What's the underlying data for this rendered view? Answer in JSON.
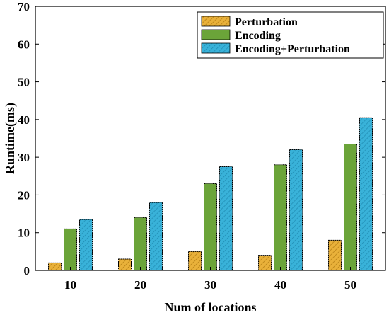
{
  "chart_data": {
    "type": "bar",
    "xlabel": "Num of locations",
    "ylabel": "Runtime(ms)",
    "categories": [
      "10",
      "20",
      "30",
      "40",
      "50"
    ],
    "ylim": [
      0,
      70
    ],
    "yticks": [
      0,
      10,
      20,
      30,
      40,
      50,
      60,
      70
    ],
    "grid": false,
    "legend_position": "top-right",
    "series": [
      {
        "name": "Perturbation",
        "values": [
          2,
          3,
          5,
          4,
          8
        ],
        "color": "#e9b13a",
        "hatch": "diagonal"
      },
      {
        "name": "Encoding",
        "values": [
          11,
          14,
          23,
          28,
          33.5
        ],
        "color": "#6ba439",
        "hatch": "none"
      },
      {
        "name": "Encoding+Perturbation",
        "values": [
          13.5,
          18,
          27.5,
          32,
          40.5
        ],
        "color": "#39b2d9",
        "hatch": "diagonal"
      }
    ]
  }
}
